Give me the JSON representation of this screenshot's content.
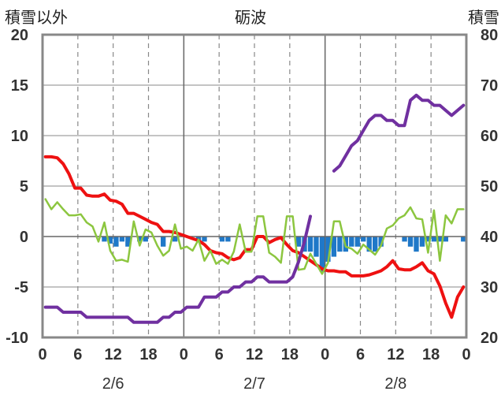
{
  "header": {
    "left_label": "積雪以外",
    "title": "砺波",
    "right_label": "積雪"
  },
  "colors": {
    "temperature": "#ee1111",
    "humidity_line": "#8cc63f",
    "snow_depth": "#7030a0",
    "snow_change_bars": "#1f78c8",
    "grid": "#888888",
    "frame": "#888888"
  },
  "chart_data": {
    "type": "line",
    "title": "砺波",
    "x": [
      0,
      1,
      2,
      3,
      4,
      5,
      6,
      7,
      8,
      9,
      10,
      11,
      12,
      13,
      14,
      15,
      16,
      17,
      18,
      19,
      20,
      21,
      22,
      23,
      24,
      25,
      26,
      27,
      28,
      29,
      30,
      31,
      32,
      33,
      34,
      35,
      36,
      37,
      38,
      39,
      40,
      41,
      42,
      43,
      44,
      45,
      46,
      47,
      48,
      49,
      50,
      51,
      52,
      53,
      54,
      55,
      56,
      57,
      58,
      59,
      60,
      61,
      62,
      63,
      64,
      65,
      66,
      67,
      68,
      69,
      70,
      71
    ],
    "x_tick_labels": [
      "0",
      "6",
      "12",
      "18",
      "0",
      "6",
      "12",
      "18",
      "0",
      "6",
      "12",
      "18",
      "0"
    ],
    "x_tick_positions": [
      0,
      6,
      12,
      18,
      24,
      30,
      36,
      42,
      48,
      54,
      60,
      66,
      72
    ],
    "day_labels": [
      {
        "label": "2/6",
        "x": 12
      },
      {
        "label": "2/7",
        "x": 36
      },
      {
        "label": "2/8",
        "x": 60
      }
    ],
    "xlim": [
      0,
      72
    ],
    "left_axis": {
      "label": "積雪以外",
      "ylim": [
        -10,
        20
      ],
      "ticks": [
        20,
        15,
        10,
        5,
        0,
        -5,
        -10
      ]
    },
    "right_axis": {
      "label": "積雪",
      "ylim": [
        20,
        80
      ],
      "ticks": [
        80,
        70,
        60,
        50,
        40,
        30,
        20
      ]
    },
    "grid": true,
    "series": [
      {
        "axis": "left",
        "style": "line",
        "color": "#ee1111",
        "values": [
          7.9,
          7.9,
          7.8,
          7.2,
          6.2,
          4.8,
          4.8,
          4.1,
          4.0,
          4.0,
          4.2,
          3.6,
          3.5,
          3.2,
          2.3,
          2.3,
          2.0,
          1.7,
          1.4,
          1.2,
          0.5,
          0.5,
          0.4,
          0.2,
          0.0,
          -0.2,
          -0.4,
          -0.8,
          -1.4,
          -1.6,
          -1.7,
          -2.1,
          -2.3,
          -2.1,
          -1.3,
          -1.3,
          0.0,
          0.0,
          -0.6,
          -0.3,
          -0.1,
          -0.8,
          -1.4,
          -1.6,
          -2.0,
          -2.4,
          -2.8,
          -3.2,
          -3.4,
          -3.4,
          -3.5,
          -3.5,
          -3.9,
          -3.9,
          -3.9,
          -3.8,
          -3.6,
          -3.4,
          -3.0,
          -2.4,
          -3.2,
          -3.3,
          -3.3,
          -3.0,
          -2.6,
          -3.4,
          -3.7,
          -4.9,
          -6.6,
          -8.0,
          -6.0,
          -5.0
        ]
      },
      {
        "axis": "left",
        "style": "line",
        "color": "#8cc63f",
        "values": [
          3.7,
          2.7,
          3.4,
          2.7,
          2.1,
          2.1,
          2.2,
          1.4,
          1.0,
          -0.5,
          1.4,
          -1.4,
          -2.4,
          -2.3,
          -2.5,
          1.5,
          -0.9,
          0.7,
          0.4,
          -0.9,
          -1.9,
          -1.4,
          1.2,
          -1.2,
          -1.0,
          -1.4,
          -0.3,
          -2.4,
          -1.4,
          -2.7,
          -2.3,
          -2.7,
          -1.5,
          1.2,
          -1.5,
          -1.5,
          2.0,
          2.0,
          -1.6,
          -2.0,
          -2.6,
          2.0,
          2.0,
          -3.3,
          -3.2,
          -1.7,
          -2.7,
          -3.7,
          -2.6,
          1.5,
          1.5,
          -1.0,
          -1.2,
          -1.7,
          -0.8,
          -1.3,
          -1.8,
          -0.9,
          0.8,
          1.1,
          1.8,
          2.1,
          2.9,
          1.8,
          1.7,
          -1.6,
          2.6,
          -2.4,
          2.1,
          1.3,
          2.7,
          2.7
        ]
      },
      {
        "axis": "right",
        "style": "line",
        "color": "#7030a0",
        "values": [
          26,
          26,
          26,
          25,
          25,
          25,
          25,
          24,
          24,
          24,
          24,
          24,
          24,
          24,
          24,
          23,
          23,
          23,
          23,
          23,
          24,
          24,
          25,
          25,
          26,
          26,
          26,
          28,
          28,
          28,
          29,
          29,
          30,
          30,
          31,
          31,
          32,
          32,
          31,
          31,
          31,
          31,
          32,
          35,
          39,
          44,
          null,
          null,
          null,
          53,
          54,
          56,
          58,
          59,
          61,
          63,
          64,
          64,
          63,
          63,
          62,
          62,
          67,
          68,
          67,
          67,
          66,
          66,
          65,
          64,
          65,
          66
        ]
      },
      {
        "axis": "left",
        "style": "bar",
        "color": "#1f78c8",
        "values": [
          0,
          0,
          0,
          0,
          0,
          0,
          0,
          0,
          0,
          0,
          -0.5,
          -0.7,
          -1.0,
          -0.5,
          -1.0,
          0,
          -0.5,
          -0.5,
          0,
          0,
          -1.0,
          0,
          -0.5,
          0,
          0,
          0,
          -0.5,
          -0.5,
          0,
          0,
          -0.5,
          -0.5,
          0,
          0,
          0,
          0,
          0,
          0,
          0,
          0,
          0,
          0,
          0,
          -1.0,
          -1.5,
          -1.5,
          -2.0,
          -3.5,
          -2.5,
          -2.0,
          -1.5,
          -1.5,
          -1.0,
          -1.0,
          -0.5,
          -1.5,
          -1.5,
          -1.0,
          0,
          0,
          0,
          -0.5,
          -1.0,
          -1.5,
          -1.0,
          -0.5,
          -0.5,
          -0.5,
          -0.5,
          0,
          0,
          -0.5
        ]
      }
    ]
  }
}
